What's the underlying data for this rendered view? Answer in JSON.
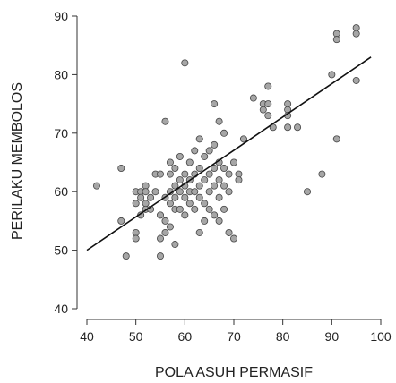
{
  "chart_data": {
    "type": "scatter",
    "xlabel": "POLA ASUH PERMASIF",
    "ylabel": "PERILAKU MEMBOLOS",
    "xlim": [
      40,
      100
    ],
    "ylim": [
      40,
      90
    ],
    "xticks": [
      "40",
      "50",
      "60",
      "70",
      "80",
      "90",
      "100"
    ],
    "yticks": [
      "40",
      "50",
      "60",
      "70",
      "80",
      "90"
    ],
    "grid": false,
    "legend": "none",
    "colors": {
      "point_fill": "#a6a6a6",
      "point_stroke": "#444444",
      "line": "#111111",
      "axis": "#333333"
    },
    "trendline": {
      "x": [
        40,
        98
      ],
      "y": [
        50,
        83
      ]
    },
    "points": [
      {
        "x": 42,
        "y": 61
      },
      {
        "x": 47,
        "y": 64
      },
      {
        "x": 47,
        "y": 55
      },
      {
        "x": 48,
        "y": 49
      },
      {
        "x": 50,
        "y": 60
      },
      {
        "x": 50,
        "y": 58
      },
      {
        "x": 50,
        "y": 53
      },
      {
        "x": 50,
        "y": 52
      },
      {
        "x": 51,
        "y": 60
      },
      {
        "x": 51,
        "y": 59
      },
      {
        "x": 51,
        "y": 56
      },
      {
        "x": 52,
        "y": 61
      },
      {
        "x": 52,
        "y": 58
      },
      {
        "x": 52,
        "y": 57
      },
      {
        "x": 52,
        "y": 60
      },
      {
        "x": 53,
        "y": 59
      },
      {
        "x": 53,
        "y": 57
      },
      {
        "x": 54,
        "y": 63
      },
      {
        "x": 54,
        "y": 60
      },
      {
        "x": 55,
        "y": 63
      },
      {
        "x": 55,
        "y": 56
      },
      {
        "x": 55,
        "y": 49
      },
      {
        "x": 55,
        "y": 52
      },
      {
        "x": 56,
        "y": 72
      },
      {
        "x": 56,
        "y": 59
      },
      {
        "x": 56,
        "y": 55
      },
      {
        "x": 56,
        "y": 53
      },
      {
        "x": 57,
        "y": 65
      },
      {
        "x": 57,
        "y": 63
      },
      {
        "x": 57,
        "y": 60
      },
      {
        "x": 57,
        "y": 58
      },
      {
        "x": 57,
        "y": 54
      },
      {
        "x": 58,
        "y": 64
      },
      {
        "x": 58,
        "y": 61
      },
      {
        "x": 58,
        "y": 59
      },
      {
        "x": 58,
        "y": 57
      },
      {
        "x": 58,
        "y": 51
      },
      {
        "x": 59,
        "y": 66
      },
      {
        "x": 59,
        "y": 62
      },
      {
        "x": 59,
        "y": 60
      },
      {
        "x": 59,
        "y": 57
      },
      {
        "x": 60,
        "y": 82
      },
      {
        "x": 60,
        "y": 63
      },
      {
        "x": 60,
        "y": 61
      },
      {
        "x": 60,
        "y": 59
      },
      {
        "x": 60,
        "y": 56
      },
      {
        "x": 61,
        "y": 65
      },
      {
        "x": 61,
        "y": 62
      },
      {
        "x": 61,
        "y": 60
      },
      {
        "x": 61,
        "y": 58
      },
      {
        "x": 62,
        "y": 67
      },
      {
        "x": 62,
        "y": 63
      },
      {
        "x": 62,
        "y": 60
      },
      {
        "x": 62,
        "y": 57
      },
      {
        "x": 63,
        "y": 69
      },
      {
        "x": 63,
        "y": 64
      },
      {
        "x": 63,
        "y": 61
      },
      {
        "x": 63,
        "y": 59
      },
      {
        "x": 63,
        "y": 53
      },
      {
        "x": 64,
        "y": 66
      },
      {
        "x": 64,
        "y": 62
      },
      {
        "x": 64,
        "y": 58
      },
      {
        "x": 64,
        "y": 55
      },
      {
        "x": 65,
        "y": 67
      },
      {
        "x": 65,
        "y": 63
      },
      {
        "x": 65,
        "y": 60
      },
      {
        "x": 65,
        "y": 57
      },
      {
        "x": 66,
        "y": 75
      },
      {
        "x": 66,
        "y": 68
      },
      {
        "x": 66,
        "y": 64
      },
      {
        "x": 66,
        "y": 61
      },
      {
        "x": 66,
        "y": 56
      },
      {
        "x": 67,
        "y": 72
      },
      {
        "x": 67,
        "y": 65
      },
      {
        "x": 67,
        "y": 62
      },
      {
        "x": 67,
        "y": 59
      },
      {
        "x": 67,
        "y": 55
      },
      {
        "x": 68,
        "y": 70
      },
      {
        "x": 68,
        "y": 64
      },
      {
        "x": 68,
        "y": 61
      },
      {
        "x": 68,
        "y": 57
      },
      {
        "x": 69,
        "y": 63
      },
      {
        "x": 69,
        "y": 60
      },
      {
        "x": 69,
        "y": 53
      },
      {
        "x": 70,
        "y": 65
      },
      {
        "x": 70,
        "y": 52
      },
      {
        "x": 71,
        "y": 63
      },
      {
        "x": 71,
        "y": 62
      },
      {
        "x": 72,
        "y": 69
      },
      {
        "x": 74,
        "y": 76
      },
      {
        "x": 76,
        "y": 75
      },
      {
        "x": 76,
        "y": 74
      },
      {
        "x": 77,
        "y": 78
      },
      {
        "x": 77,
        "y": 75
      },
      {
        "x": 77,
        "y": 73
      },
      {
        "x": 78,
        "y": 71
      },
      {
        "x": 81,
        "y": 75
      },
      {
        "x": 81,
        "y": 74
      },
      {
        "x": 81,
        "y": 73
      },
      {
        "x": 81,
        "y": 71
      },
      {
        "x": 83,
        "y": 71
      },
      {
        "x": 85,
        "y": 60
      },
      {
        "x": 88,
        "y": 63
      },
      {
        "x": 90,
        "y": 80
      },
      {
        "x": 91,
        "y": 87
      },
      {
        "x": 91,
        "y": 86
      },
      {
        "x": 91,
        "y": 69
      },
      {
        "x": 95,
        "y": 88
      },
      {
        "x": 95,
        "y": 87
      },
      {
        "x": 95,
        "y": 79
      }
    ]
  }
}
